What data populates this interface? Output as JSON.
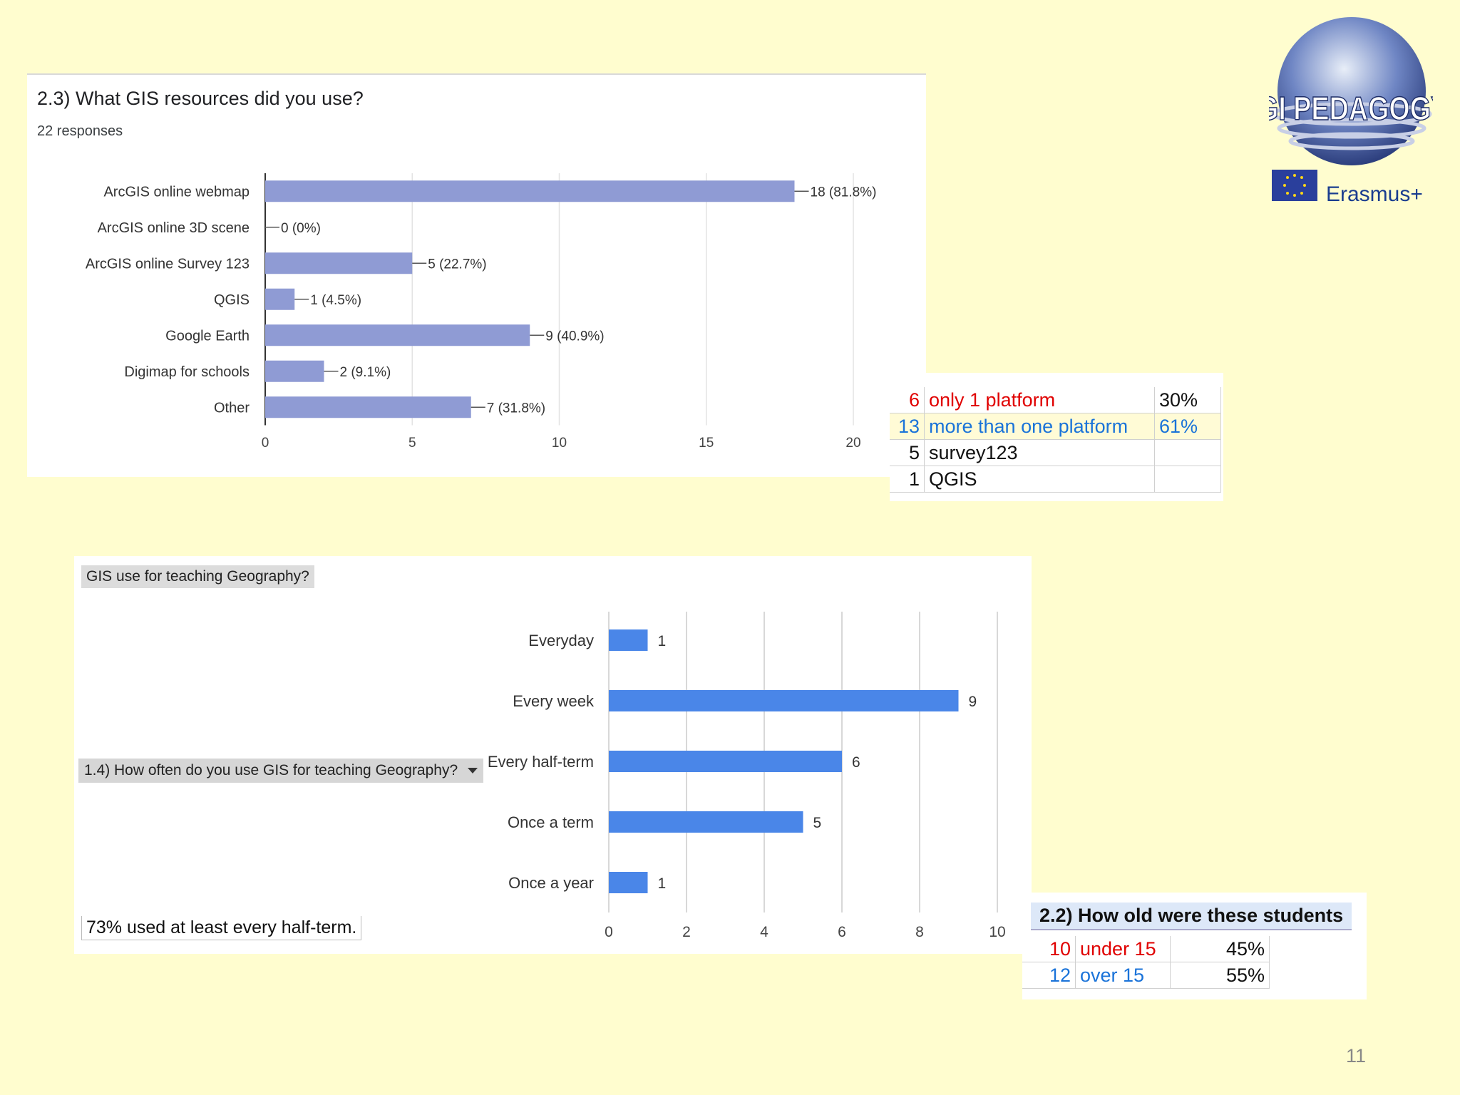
{
  "slide_number": "11",
  "logo": {
    "text": "GI PEDAGOGY",
    "program": "Erasmus+"
  },
  "chart_data": [
    {
      "type": "bar",
      "orientation": "horizontal",
      "title": "2.3) What GIS resources did you use?",
      "subtitle": "22 responses",
      "categories": [
        "ArcGIS online webmap",
        "ArcGIS online 3D scene",
        "ArcGIS online Survey 123",
        "QGIS",
        "Google Earth",
        "Digimap for schools",
        "Other"
      ],
      "values": [
        18,
        0,
        5,
        1,
        9,
        2,
        7
      ],
      "value_labels": [
        "18 (81.8%)",
        "0 (0%)",
        "5 (22.7%)",
        "1 (4.5%)",
        "9 (40.9%)",
        "2 (9.1%)",
        "7 (31.8%)"
      ],
      "xlim": [
        0,
        20
      ],
      "xticks": [
        0,
        5,
        10,
        15,
        20
      ],
      "color": "#8f9bd4"
    },
    {
      "type": "bar",
      "orientation": "horizontal",
      "title": "GIS use for teaching Geography?",
      "filter_label": "1.4) How often do you use GIS for teaching Geography?",
      "note": "73% used at least every half-term.",
      "categories": [
        "Everyday",
        "Every week",
        "Every half-term",
        "Once a term",
        "Once a year"
      ],
      "values": [
        1,
        9,
        6,
        5,
        1
      ],
      "xlim": [
        0,
        10
      ],
      "xticks": [
        0,
        2,
        4,
        6,
        8,
        10
      ],
      "color": "#4a86e8"
    }
  ],
  "platform_table": [
    {
      "count": "6",
      "label": "only 1 platform",
      "pct": "30%",
      "color": "#e00000"
    },
    {
      "count": "13",
      "label": "more than one platform",
      "pct": "61%",
      "color": "#1a73d9"
    },
    {
      "count": "5",
      "label": "survey123",
      "pct": "",
      "color": "#111111"
    },
    {
      "count": "1",
      "label": "QGIS",
      "pct": "",
      "color": "#111111"
    }
  ],
  "age_table": {
    "title": "2.2) How old were these students",
    "rows": [
      {
        "count": "10",
        "label": "under 15",
        "pct": "45%",
        "color": "#e00000"
      },
      {
        "count": "12",
        "label": "over 15",
        "pct": "55%",
        "color": "#1a73d9"
      }
    ]
  }
}
